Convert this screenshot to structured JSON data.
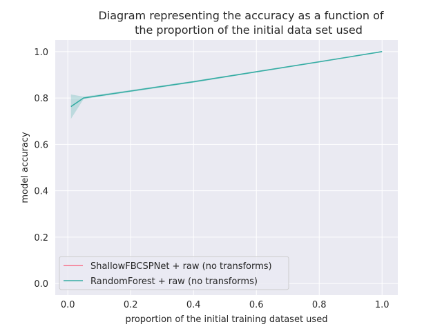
{
  "chart_data": {
    "type": "line",
    "title_lines": [
      "Diagram representing the accuracy as a function of",
      "the proportion of the initial data set used"
    ],
    "xlabel": "proportion of the initial training dataset used",
    "ylabel": "model accuracy",
    "xlim": [
      -0.04,
      1.05
    ],
    "ylim": [
      -0.05,
      1.05
    ],
    "xticks": [
      0.0,
      0.2,
      0.4,
      0.6,
      0.8,
      1.0
    ],
    "xtick_labels": [
      "0.0",
      "0.2",
      "0.4",
      "0.6",
      "0.8",
      "1.0"
    ],
    "yticks": [
      0.0,
      0.2,
      0.4,
      0.6,
      0.8,
      1.0
    ],
    "ytick_labels": [
      "0.0",
      "0.2",
      "0.4",
      "0.6",
      "0.8",
      "1.0"
    ],
    "grid": true,
    "legend_position": "lower-left",
    "background": "#eaeaf2",
    "series": [
      {
        "name": "ShallowFBCSPNet + raw (no transforms)",
        "color": "#f77189",
        "x": [],
        "y": []
      },
      {
        "name": "RandomForest + raw (no transforms)",
        "color": "#36ada4",
        "x": [
          0.01,
          0.05,
          0.2,
          0.4,
          0.6,
          0.8,
          1.0
        ],
        "y": [
          0.763,
          0.8,
          0.83,
          0.87,
          0.913,
          0.956,
          1.0
        ],
        "band_lower": [
          0.71,
          0.795,
          0.826,
          0.866,
          0.91,
          0.953,
          1.0
        ],
        "band_upper": [
          0.815,
          0.806,
          0.834,
          0.874,
          0.916,
          0.959,
          1.0
        ]
      }
    ]
  }
}
